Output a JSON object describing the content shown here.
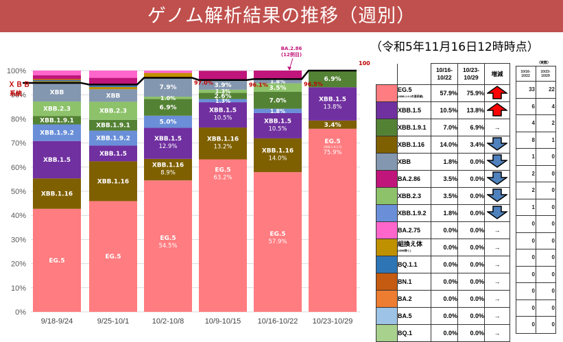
{
  "header": {
    "title": "ゲノム解析結果の推移（週別）",
    "as_of": "（令和5年11月16日12時時点）"
  },
  "chart_data": {
    "type": "bar",
    "stacked": true,
    "title": "ゲノム解析結果の推移（週別）",
    "xlabel": "",
    "ylabel": "",
    "ylim": [
      0,
      100
    ],
    "y_ticks": [
      "0%",
      "10%",
      "20%",
      "30%",
      "40%",
      "50%",
      "60%",
      "70%",
      "80%",
      "90%",
      "100%"
    ],
    "grid": true,
    "categories": [
      "9/18-9/24",
      "9/25-10/1",
      "10/2-10/8",
      "10/9-10/15",
      "10/16-10/22",
      "10/23-10/29"
    ],
    "series": [
      {
        "name": "EG.5",
        "color": "#ff7c80",
        "values": [
          42.7,
          45.9,
          54.5,
          63.2,
          57.9,
          75.9
        ]
      },
      {
        "name": "XBB.1.16",
        "color": "#7f6000",
        "values": [
          12.6,
          16.5,
          8.9,
          13.2,
          14.0,
          3.4
        ]
      },
      {
        "name": "XBB.1.5",
        "color": "#7030a0",
        "values": [
          15.5,
          6.5,
          12.9,
          10.5,
          10.5,
          13.8
        ]
      },
      {
        "name": "XBB.1.9.2",
        "color": "#6a8fd8",
        "values": [
          6.9,
          6.2,
          5.0,
          1.3,
          1.8,
          0.0
        ]
      },
      {
        "name": "XBB.1.9.1",
        "color": "#548235",
        "values": [
          3.5,
          4.5,
          6.9,
          2.6,
          7.0,
          6.9
        ]
      },
      {
        "name": "XBB.2.3",
        "color": "#8dc26a",
        "values": [
          6.0,
          7.5,
          1.0,
          1.3,
          3.5,
          0.0
        ]
      },
      {
        "name": "XBB",
        "color": "#8497b0",
        "values": [
          7.6,
          5.2,
          7.9,
          3.9,
          1.8,
          0.0
        ]
      },
      {
        "name": "組換え体",
        "color": "#bf9000",
        "values": [
          0.8,
          0.9,
          1.9,
          0.0,
          0.0,
          0.0
        ]
      },
      {
        "name": "BQ.1.1",
        "color": "#2e75b6",
        "values": [
          0.5,
          0.6,
          0.0,
          0.0,
          0.0,
          0.0
        ]
      },
      {
        "name": "BN.1",
        "color": "#c55a11",
        "values": [
          0.5,
          0.4,
          0.0,
          0.0,
          0.0,
          0.0
        ]
      },
      {
        "name": "BA.2.86",
        "color": "#c0157a",
        "values": [
          1.5,
          2.8,
          0.0,
          3.9,
          3.5,
          0.0
        ]
      },
      {
        "name": "BA.2.75",
        "color": "#ff66cc",
        "values": [
          1.9,
          3.0,
          1.0,
          0.0,
          0.0,
          0.0
        ]
      }
    ],
    "segment_labels": [
      {
        "bar": 0,
        "series": "EG.5",
        "text": "EG.5"
      },
      {
        "bar": 0,
        "series": "XBB.1.16",
        "text": "XBB.1.16"
      },
      {
        "bar": 0,
        "series": "XBB.1.5",
        "text": "XBB.1.5"
      },
      {
        "bar": 0,
        "series": "XBB.1.9.2",
        "text": "XBB.1.9.2"
      },
      {
        "bar": 0,
        "series": "XBB.1.9.1",
        "text": "XBB.1.9.1"
      },
      {
        "bar": 0,
        "series": "XBB.2.3",
        "text": "XBB.2.3"
      },
      {
        "bar": 0,
        "series": "XBB",
        "text": "XBB"
      },
      {
        "bar": 1,
        "series": "EG.5",
        "text": "EG.5"
      },
      {
        "bar": 1,
        "series": "XBB.1.16",
        "text": "XBB.1.16"
      },
      {
        "bar": 1,
        "series": "XBB.1.5",
        "text": "XBB.1.5"
      },
      {
        "bar": 1,
        "series": "XBB.1.9.2",
        "text": "XBB.1.9.2"
      },
      {
        "bar": 1,
        "series": "XBB.1.9.1",
        "text": "XBB.1.9.1"
      },
      {
        "bar": 1,
        "series": "XBB.2.3",
        "text": "XBB.2.3"
      },
      {
        "bar": 1,
        "series": "XBB",
        "text": "XBB"
      },
      {
        "bar": 2,
        "series": "EG.5",
        "text": "EG.5",
        "sub": "54.5%"
      },
      {
        "bar": 2,
        "series": "XBB.1.16",
        "text": "XBB.1.16",
        "sub": "8.9%"
      },
      {
        "bar": 2,
        "series": "XBB.1.5",
        "text": "XBB.1.5",
        "sub": "12.9%"
      },
      {
        "bar": 2,
        "series": "XBB.1.9.2",
        "text": "5.0%"
      },
      {
        "bar": 2,
        "series": "XBB.1.9.1",
        "text": "6.9%"
      },
      {
        "bar": 2,
        "series": "XBB.2.3",
        "text": "1.0%"
      },
      {
        "bar": 2,
        "series": "XBB",
        "text": "7.9%"
      },
      {
        "bar": 3,
        "series": "EG.5",
        "text": "EG.5",
        "sub": "63.2%"
      },
      {
        "bar": 3,
        "series": "XBB.1.16",
        "text": "XBB.1.16",
        "sub": "13.2%"
      },
      {
        "bar": 3,
        "series": "XBB.1.5",
        "text": "XBB.1.5",
        "sub": "10.5%"
      },
      {
        "bar": 3,
        "series": "XBB.1.9.2",
        "text": "1.3%"
      },
      {
        "bar": 3,
        "series": "XBB.1.9.1",
        "text": "2.6%"
      },
      {
        "bar": 3,
        "series": "XBB.2.3",
        "text": "1.3%"
      },
      {
        "bar": 3,
        "series": "XBB",
        "text": "3.9%"
      },
      {
        "bar": 4,
        "series": "EG.5",
        "text": "EG.5",
        "sub": "57.9%"
      },
      {
        "bar": 4,
        "series": "XBB.1.16",
        "text": "XBB.1.16",
        "sub": "14.0%"
      },
      {
        "bar": 4,
        "series": "XBB.1.5",
        "text": "XBB.1.5",
        "sub": "10.5%"
      },
      {
        "bar": 4,
        "series": "XBB.1.9.2",
        "text": "1.8%"
      },
      {
        "bar": 4,
        "series": "XBB.1.9.1",
        "text": "7.0%"
      },
      {
        "bar": 4,
        "series": "XBB.2.3",
        "text": "3.5%"
      },
      {
        "bar": 4,
        "series": "XBB",
        "text": "1.8%"
      },
      {
        "bar": 5,
        "series": "EG.5",
        "text": "EG.5",
        "note": "(XBB.1.9.2.5)",
        "sub": "75.9%"
      },
      {
        "bar": 5,
        "series": "XBB.1.16",
        "text": "3.4%"
      },
      {
        "bar": 5,
        "series": "XBB.1.5",
        "text": "XBB.1.5",
        "sub": "13.8%"
      },
      {
        "bar": 5,
        "series": "XBB.1.9.1",
        "text": "6.9%"
      }
    ],
    "xbb_line": {
      "label": "ＸＢＢ系統",
      "values": [
        94.9,
        94.2,
        97.0,
        96.1,
        96.5,
        100
      ],
      "value_labels": [
        "",
        "",
        "97.0%",
        "96.1%",
        "96.5%",
        "100%"
      ]
    },
    "annotation": {
      "text_line1": "BA.2.86",
      "text_line2": "(12例目)",
      "bar": 4
    },
    "colors": {
      "line": "#000000",
      "line_label": "#c00000",
      "annotation": "#c0157a"
    }
  },
  "table": {
    "headers": [
      "",
      "",
      "10/16-\n10/22",
      "10/23-\n10/29",
      "増減"
    ],
    "rows": [
      {
        "name": "EG.5",
        "note": "(XBB.1.9.2の亜系統)",
        "color": "#ff7c80",
        "w1": "57.9%",
        "w2": "75.9%",
        "trend": "up"
      },
      {
        "name": "XBB.1.5",
        "color": "#7030a0",
        "w1": "10.5%",
        "w2": "13.8%",
        "trend": "up"
      },
      {
        "name": "XBB.1.9.1",
        "color": "#548235",
        "w1": "7.0%",
        "w2": "6.9%",
        "trend": "flat"
      },
      {
        "name": "XBB.1.16",
        "color": "#7f6000",
        "w1": "14.0%",
        "w2": "3.4%",
        "trend": "down"
      },
      {
        "name": "XBB",
        "color": "#8497b0",
        "w1": "1.8%",
        "w2": "0.0%",
        "trend": "down"
      },
      {
        "name": "BA.2.86",
        "color": "#c0157a",
        "w1": "3.5%",
        "w2": "0.0%",
        "trend": "down"
      },
      {
        "name": "XBB.2.3",
        "color": "#8dc26a",
        "w1": "3.5%",
        "w2": "0.0%",
        "trend": "down"
      },
      {
        "name": "XBB.1.9.2",
        "color": "#6a8fd8",
        "w1": "1.8%",
        "w2": "0.0%",
        "trend": "down"
      },
      {
        "name": "BA.2.75",
        "color": "#ff66cc",
        "w1": "0.0%",
        "w2": "0.0%",
        "trend": "flat"
      },
      {
        "name": "組換え体",
        "note": "(XBB除く)",
        "color": "#bf9000",
        "w1": "0.0%",
        "w2": "0.0%",
        "trend": "flat"
      },
      {
        "name": "BQ.1.1",
        "color": "#2e75b6",
        "w1": "0.0%",
        "w2": "0.0%",
        "trend": "flat"
      },
      {
        "name": "BN.1",
        "color": "#c55a11",
        "w1": "0.0%",
        "w2": "0.0%",
        "trend": "flat"
      },
      {
        "name": "BA.2",
        "color": "#ed7d31",
        "w1": "0.0%",
        "w2": "0.0%",
        "trend": "flat"
      },
      {
        "name": "BA.5",
        "color": "#9dc3e6",
        "w1": "0.0%",
        "w2": "0.0%",
        "trend": "flat"
      },
      {
        "name": "BQ.1",
        "color": "#a9d18e",
        "w1": "0.0%",
        "w2": "0.0%",
        "trend": "flat"
      }
    ],
    "flat_glyph": "→"
  },
  "counts_table": {
    "unit": "（実数）",
    "headers": [
      "10/16-\n10/22",
      "10/23-\n10/29"
    ],
    "rows": [
      [
        "33",
        "22"
      ],
      [
        "6",
        "4"
      ],
      [
        "4",
        "2"
      ],
      [
        "8",
        "1"
      ],
      [
        "1",
        "0"
      ],
      [
        "2",
        "0"
      ],
      [
        "2",
        "0"
      ],
      [
        "1",
        "0"
      ],
      [
        "0",
        "0"
      ],
      [
        "0",
        "0"
      ],
      [
        "0",
        "0"
      ],
      [
        "0",
        "0"
      ],
      [
        "0",
        "0"
      ],
      [
        "0",
        "0"
      ],
      [
        "0",
        "0"
      ]
    ]
  }
}
